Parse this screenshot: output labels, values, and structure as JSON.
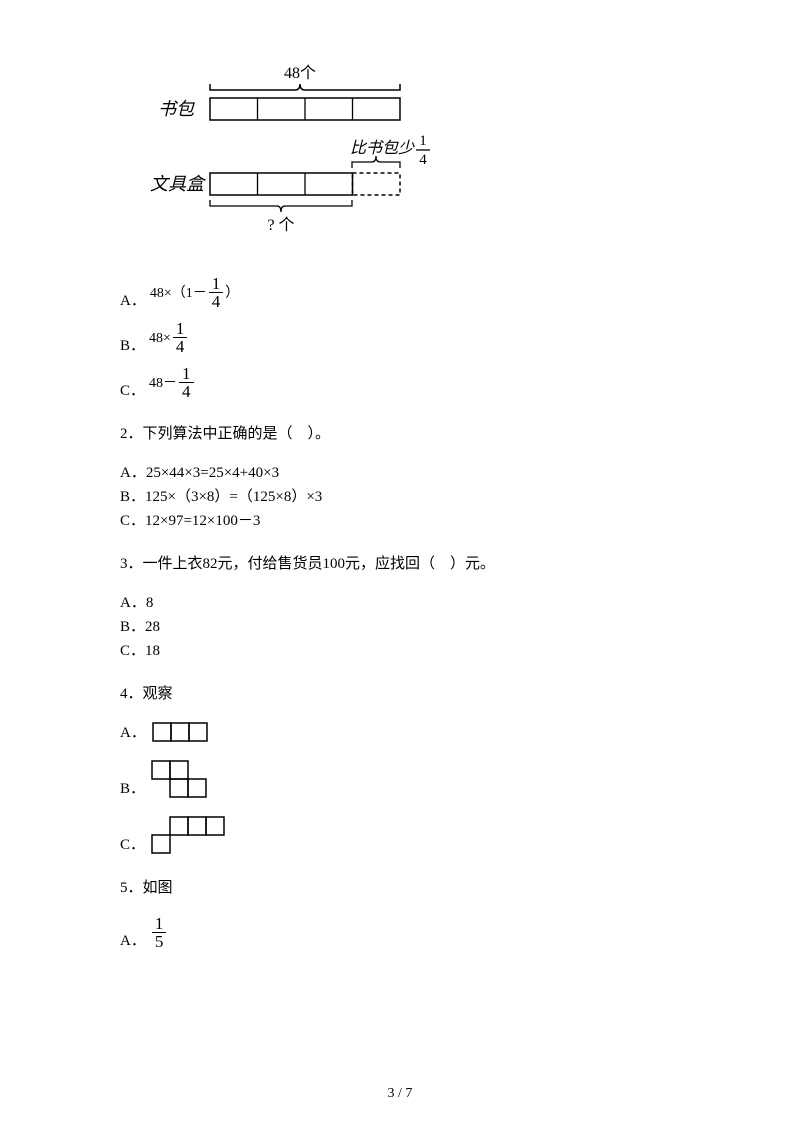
{
  "diagram": {
    "top_label": "48个",
    "left_label_top": "书包",
    "left_label_bottom": "文具盒",
    "right_label_prefix": "比书包少",
    "right_label_frac_num": "1",
    "right_label_frac_den": "4",
    "bottom_label": "? 个",
    "stroke": "#000000"
  },
  "q1": {
    "optA_label": "A．",
    "optA_expr_prefix": "48×（1－",
    "optA_frac_num": "1",
    "optA_frac_den": "4",
    "optA_expr_suffix": "）",
    "optB_label": "B．",
    "optB_expr_prefix": "48×",
    "optB_frac_num": "1",
    "optB_frac_den": "4",
    "optC_label": "C．",
    "optC_expr_prefix": "48－",
    "optC_frac_num": "1",
    "optC_frac_den": "4"
  },
  "q2": {
    "text": "2．下列算法中正确的是（　）。",
    "optA": "A．25×44×3=25×4+40×3",
    "optB": "B．125×（3×8）=（125×8）×3",
    "optC": "C．12×97=12×100－3"
  },
  "q3": {
    "text": "3．一件上衣82元，付给售货员100元，应找回（　）元。",
    "optA": "A．8",
    "optB": "B．28",
    "optC": "C．18"
  },
  "q4": {
    "text": "4．观察",
    "optA_label": "A．",
    "optB_label": "B．",
    "optC_label": "C．",
    "shapeA": {
      "cells": [
        [
          0,
          0
        ],
        [
          1,
          0
        ],
        [
          2,
          0
        ]
      ],
      "cell": 18
    },
    "shapeB": {
      "cells": [
        [
          0,
          0
        ],
        [
          1,
          0
        ],
        [
          1,
          1
        ],
        [
          2,
          1
        ]
      ],
      "cell": 18
    },
    "shapeC": {
      "cells": [
        [
          1,
          0
        ],
        [
          2,
          0
        ],
        [
          3,
          0
        ],
        [
          0,
          1
        ]
      ],
      "cell": 18
    }
  },
  "q5": {
    "text": "5．如图",
    "optA_label": "A．",
    "optA_frac_num": "1",
    "optA_frac_den": "5"
  },
  "footer": "3 / 7"
}
